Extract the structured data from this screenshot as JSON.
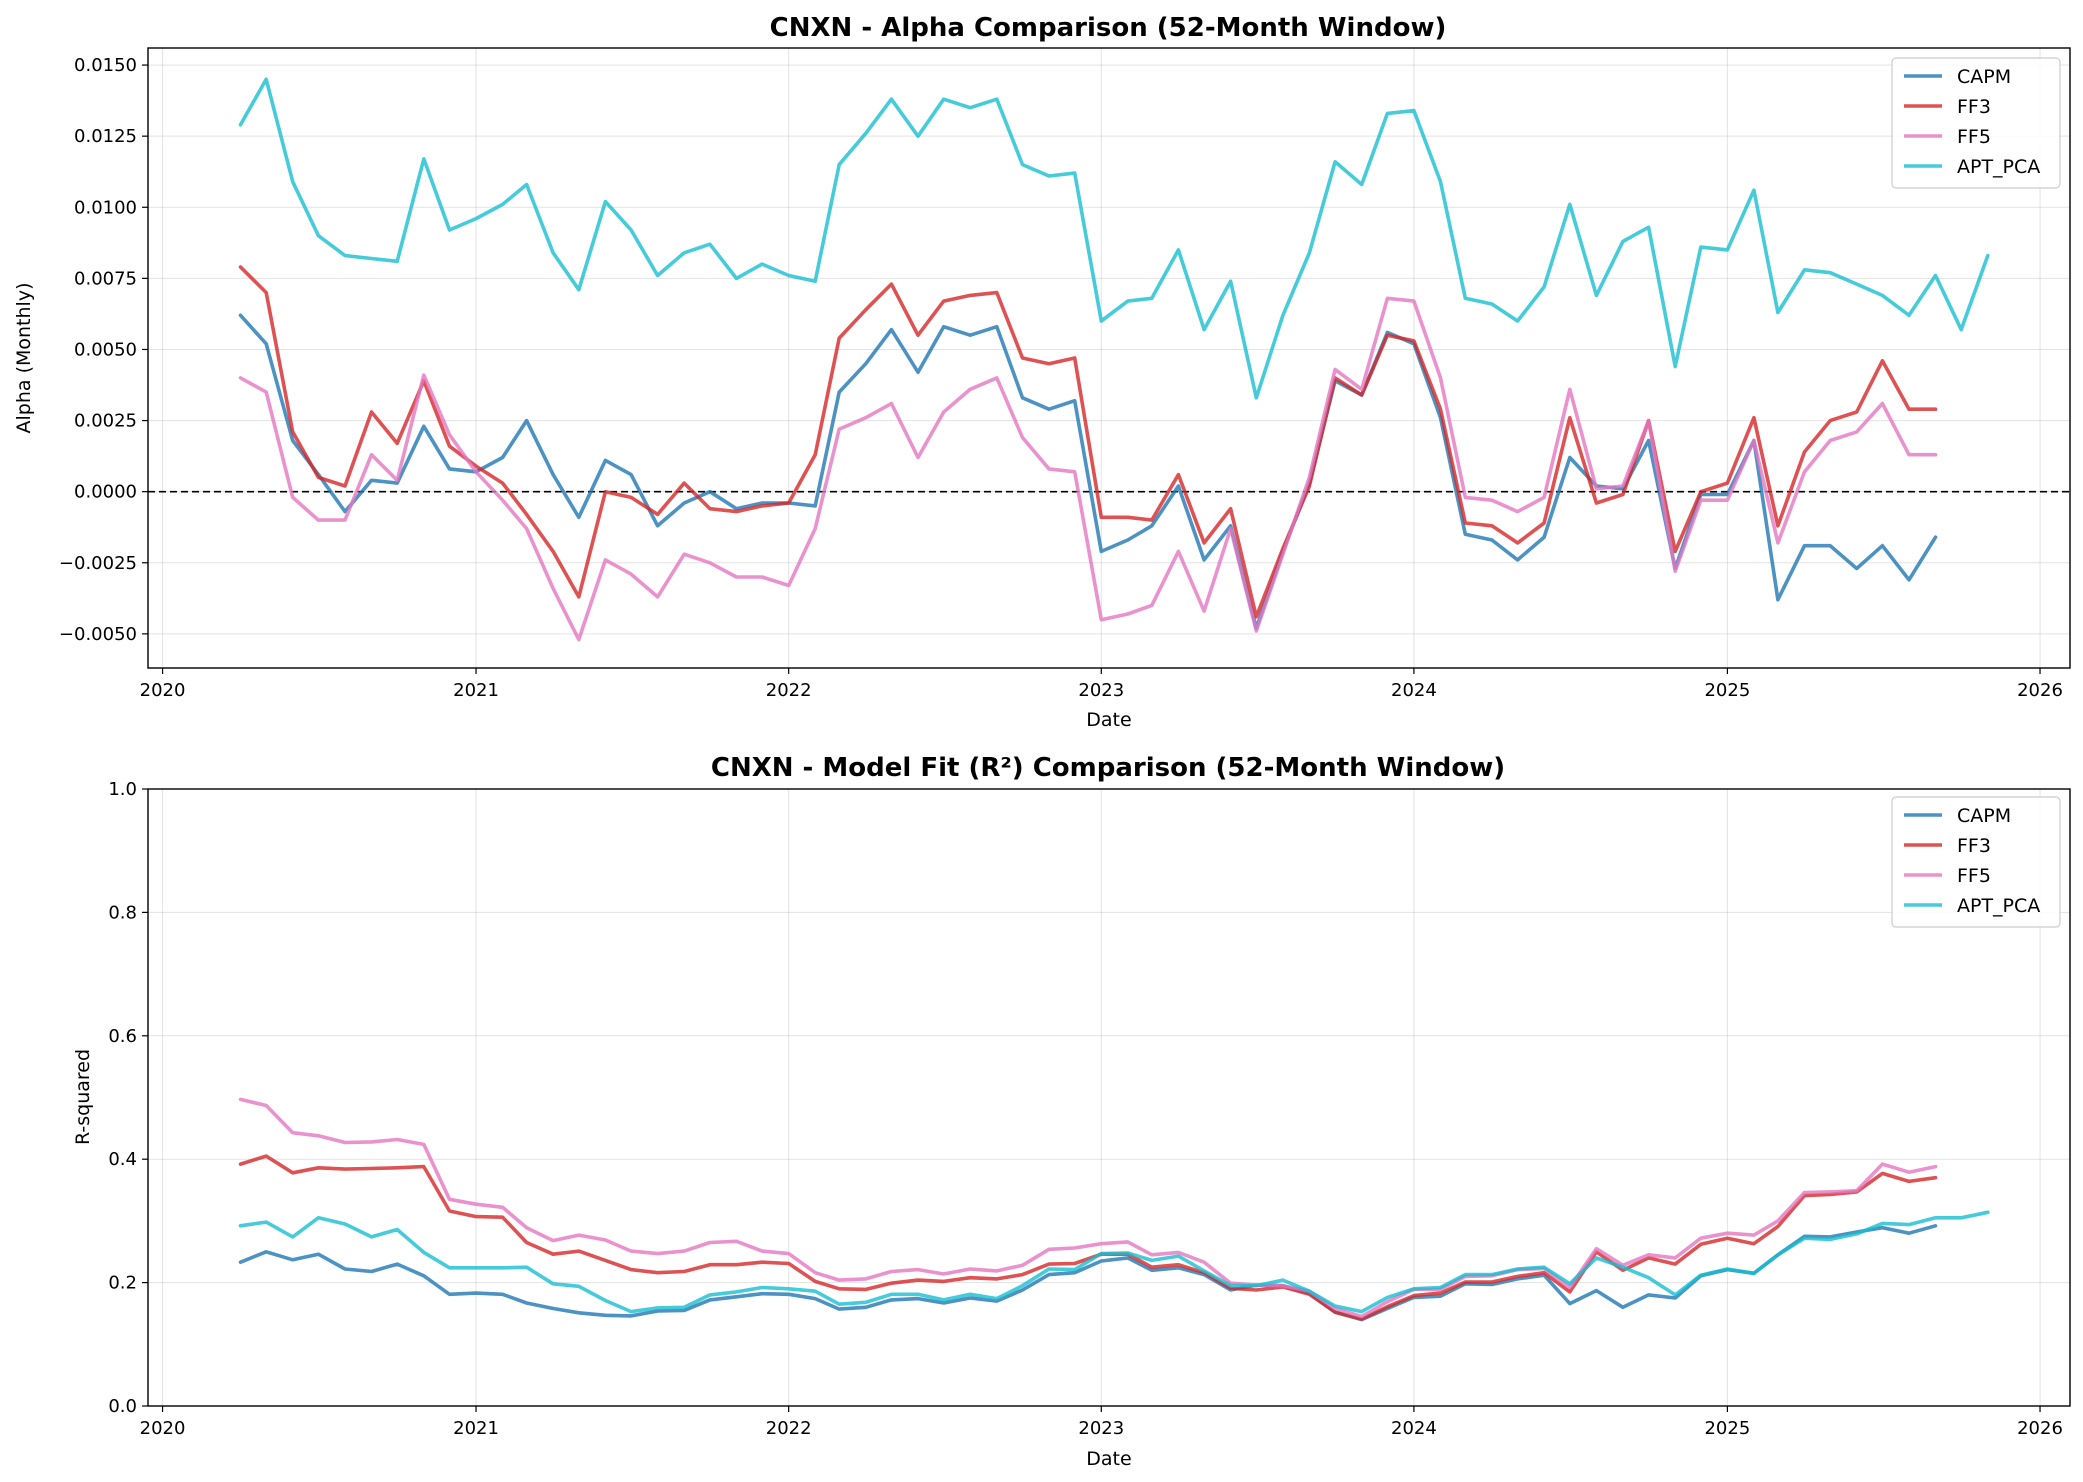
{
  "chart_data": [
    {
      "type": "line",
      "title": "CNXN - Alpha Comparison (52-Month Window)",
      "xlabel": "Date",
      "ylabel": "Alpha (Monthly)",
      "xlim": [
        "2019-12-15",
        "2026-02-05"
      ],
      "ylim": [
        -0.0062,
        0.0156
      ],
      "x_ticks": [
        "2020",
        "2021",
        "2022",
        "2023",
        "2024",
        "2025",
        "2026"
      ],
      "y_ticks": [
        "0.0150",
        "0.0125",
        "0.0100",
        "0.0075",
        "0.0050",
        "0.0025",
        "0.0000",
        "−0.0025",
        "−0.0050"
      ],
      "y_tick_values": [
        0.015,
        0.0125,
        0.01,
        0.0075,
        0.005,
        0.0025,
        0.0,
        -0.0025,
        -0.005
      ],
      "zero_line": true,
      "grid": true,
      "legend": "top-right",
      "series": [
        {
          "name": "CAPM",
          "color": "#1f77b4",
          "start": "2020-04",
          "values": [
            0.0062,
            0.0052,
            0.0018,
            0.0006,
            -0.0007,
            0.0004,
            0.0003,
            0.0023,
            0.0008,
            0.0007,
            0.0012,
            0.0025,
            0.0006,
            -0.0009,
            0.0011,
            0.0006,
            -0.0012,
            -0.0004,
            0.0,
            -0.0006,
            -0.0004,
            -0.0004,
            -0.0005,
            0.0035,
            0.0045,
            0.0057,
            0.0042,
            0.0058,
            0.0055,
            0.0058,
            0.0033,
            0.0029,
            0.0032,
            -0.0021,
            -0.0017,
            -0.0012,
            0.0002,
            -0.0024,
            -0.0012,
            -0.0048,
            -0.0021,
            0.0003,
            0.0039,
            0.0034,
            0.0056,
            0.0052,
            0.0026,
            -0.0015,
            -0.0017,
            -0.0024,
            -0.0016,
            0.0012,
            0.0002,
            0.0001,
            0.0018,
            -0.0027,
            -0.0001,
            -0.0001,
            0.0018,
            -0.0038,
            -0.0019,
            -0.0019,
            -0.0027,
            -0.0019,
            -0.0031,
            -0.0016
          ]
        },
        {
          "name": "FF3",
          "color": "#d62728",
          "start": "2020-04",
          "values": [
            0.0079,
            0.007,
            0.0021,
            0.0005,
            0.0002,
            0.0028,
            0.0017,
            0.0039,
            0.0016,
            0.0009,
            0.0003,
            -0.0008,
            -0.0021,
            -0.0037,
            0.0,
            -0.0002,
            -0.0008,
            0.0003,
            -0.0006,
            -0.0007,
            -0.0005,
            -0.0004,
            0.0013,
            0.0054,
            0.0064,
            0.0073,
            0.0055,
            0.0067,
            0.0069,
            0.007,
            0.0047,
            0.0045,
            0.0047,
            -0.0009,
            -0.0009,
            -0.001,
            0.0006,
            -0.0018,
            -0.0006,
            -0.0044,
            -0.002,
            0.0002,
            0.004,
            0.0034,
            0.0055,
            0.0053,
            0.0029,
            -0.0011,
            -0.0012,
            -0.0018,
            -0.0011,
            0.0026,
            -0.0004,
            -0.0001,
            0.0025,
            -0.0021,
            0.0,
            0.0003,
            0.0026,
            -0.0012,
            0.0014,
            0.0025,
            0.0028,
            0.0046,
            0.0029,
            0.0029
          ]
        },
        {
          "name": "FF5",
          "color": "#e377c2",
          "start": "2020-04",
          "values": [
            0.004,
            0.0035,
            -0.0002,
            -0.001,
            -0.001,
            0.0013,
            0.0004,
            0.0041,
            0.002,
            0.0007,
            -0.0003,
            -0.0013,
            -0.0034,
            -0.0052,
            -0.0024,
            -0.0029,
            -0.0037,
            -0.0022,
            -0.0025,
            -0.003,
            -0.003,
            -0.0033,
            -0.0013,
            0.0022,
            0.0026,
            0.0031,
            0.0012,
            0.0028,
            0.0036,
            0.004,
            0.0019,
            0.0008,
            0.0007,
            -0.0045,
            -0.0043,
            -0.004,
            -0.0021,
            -0.0042,
            -0.0013,
            -0.0049,
            -0.0022,
            0.0005,
            0.0043,
            0.0036,
            0.0068,
            0.0067,
            0.004,
            -0.0002,
            -0.0003,
            -0.0007,
            -0.0002,
            0.0036,
            0.0001,
            0.0002,
            0.0025,
            -0.0028,
            -0.0003,
            -0.0003,
            0.0018,
            -0.0018,
            0.0007,
            0.0018,
            0.0021,
            0.0031,
            0.0013,
            0.0013
          ]
        },
        {
          "name": "APT_PCA",
          "color": "#17becf",
          "start": "2020-04",
          "values": [
            0.0129,
            0.0145,
            0.0109,
            0.009,
            0.0083,
            0.0082,
            0.0081,
            0.0117,
            0.0092,
            0.0096,
            0.0101,
            0.0108,
            0.0084,
            0.0071,
            0.0102,
            0.0092,
            0.0076,
            0.0084,
            0.0087,
            0.0075,
            0.008,
            0.0076,
            0.0074,
            0.0115,
            0.0126,
            0.0138,
            0.0125,
            0.0138,
            0.0135,
            0.0138,
            0.0115,
            0.0111,
            0.0112,
            0.006,
            0.0067,
            0.0068,
            0.0085,
            0.0057,
            0.0074,
            0.0033,
            0.0062,
            0.0084,
            0.0116,
            0.0108,
            0.0133,
            0.0134,
            0.0109,
            0.0068,
            0.0066,
            0.006,
            0.0072,
            0.0101,
            0.0069,
            0.0088,
            0.0093,
            0.0044,
            0.0086,
            0.0085,
            0.0106,
            0.0063,
            0.0078,
            0.0077,
            0.0073,
            0.0069,
            0.0062,
            0.0076,
            0.0057,
            0.0083
          ]
        }
      ]
    },
    {
      "type": "line",
      "title": "CNXN - Model Fit (R²) Comparison (52-Month Window)",
      "xlabel": "Date",
      "ylabel": "R-squared",
      "xlim": [
        "2019-12-15",
        "2026-02-05"
      ],
      "ylim": [
        0,
        1
      ],
      "x_ticks": [
        "2020",
        "2021",
        "2022",
        "2023",
        "2024",
        "2025",
        "2026"
      ],
      "y_ticks": [
        "1.0",
        "0.8",
        "0.6",
        "0.4",
        "0.2",
        "0.0"
      ],
      "y_tick_values": [
        1.0,
        0.8,
        0.6,
        0.4,
        0.2,
        0.0
      ],
      "grid": true,
      "legend": "top-right",
      "series": [
        {
          "name": "CAPM",
          "color": "#1f77b4",
          "start": "2020-04",
          "values": [
            0.233,
            0.25,
            0.237,
            0.246,
            0.222,
            0.218,
            0.23,
            0.211,
            0.181,
            0.183,
            0.181,
            0.167,
            0.158,
            0.151,
            0.147,
            0.146,
            0.154,
            0.155,
            0.172,
            0.177,
            0.182,
            0.181,
            0.174,
            0.157,
            0.16,
            0.172,
            0.174,
            0.167,
            0.175,
            0.17,
            0.188,
            0.213,
            0.216,
            0.235,
            0.24,
            0.22,
            0.224,
            0.213,
            0.188,
            0.196,
            0.195,
            0.183,
            0.152,
            0.14,
            0.158,
            0.176,
            0.178,
            0.198,
            0.197,
            0.206,
            0.212,
            0.166,
            0.187,
            0.16,
            0.18,
            0.175,
            0.211,
            0.221,
            0.215,
            0.245,
            0.275,
            0.274,
            0.282,
            0.289,
            0.28,
            0.292
          ]
        },
        {
          "name": "FF3",
          "color": "#d62728",
          "start": "2020-04",
          "values": [
            0.392,
            0.405,
            0.378,
            0.386,
            0.384,
            0.385,
            0.386,
            0.388,
            0.316,
            0.307,
            0.306,
            0.265,
            0.246,
            0.251,
            0.236,
            0.221,
            0.216,
            0.218,
            0.229,
            0.229,
            0.233,
            0.231,
            0.202,
            0.19,
            0.189,
            0.199,
            0.204,
            0.202,
            0.208,
            0.206,
            0.213,
            0.23,
            0.231,
            0.246,
            0.246,
            0.225,
            0.229,
            0.216,
            0.191,
            0.188,
            0.193,
            0.181,
            0.152,
            0.141,
            0.161,
            0.179,
            0.183,
            0.201,
            0.201,
            0.21,
            0.216,
            0.185,
            0.25,
            0.22,
            0.24,
            0.23,
            0.262,
            0.272,
            0.263,
            0.291,
            0.341,
            0.343,
            0.347,
            0.377,
            0.364,
            0.37
          ]
        },
        {
          "name": "FF5",
          "color": "#e377c2",
          "start": "2020-04",
          "values": [
            0.497,
            0.487,
            0.443,
            0.438,
            0.427,
            0.428,
            0.432,
            0.424,
            0.335,
            0.327,
            0.322,
            0.289,
            0.268,
            0.277,
            0.269,
            0.251,
            0.247,
            0.251,
            0.265,
            0.267,
            0.251,
            0.247,
            0.216,
            0.204,
            0.206,
            0.218,
            0.221,
            0.214,
            0.222,
            0.219,
            0.228,
            0.254,
            0.256,
            0.263,
            0.266,
            0.245,
            0.249,
            0.233,
            0.199,
            0.196,
            0.195,
            0.186,
            0.158,
            0.145,
            0.169,
            0.189,
            0.189,
            0.21,
            0.211,
            0.221,
            0.223,
            0.192,
            0.255,
            0.228,
            0.245,
            0.24,
            0.272,
            0.28,
            0.277,
            0.3,
            0.346,
            0.347,
            0.349,
            0.392,
            0.379,
            0.388
          ]
        },
        {
          "name": "APT_PCA",
          "color": "#17becf",
          "start": "2020-04",
          "values": [
            0.292,
            0.298,
            0.274,
            0.305,
            0.295,
            0.274,
            0.286,
            0.249,
            0.224,
            0.224,
            0.224,
            0.225,
            0.198,
            0.194,
            0.171,
            0.153,
            0.159,
            0.16,
            0.18,
            0.185,
            0.192,
            0.19,
            0.186,
            0.165,
            0.168,
            0.181,
            0.181,
            0.172,
            0.181,
            0.174,
            0.195,
            0.222,
            0.221,
            0.247,
            0.248,
            0.236,
            0.243,
            0.219,
            0.195,
            0.195,
            0.204,
            0.186,
            0.162,
            0.153,
            0.176,
            0.19,
            0.192,
            0.213,
            0.213,
            0.222,
            0.225,
            0.198,
            0.24,
            0.225,
            0.208,
            0.18,
            0.212,
            0.222,
            0.215,
            0.245,
            0.272,
            0.27,
            0.279,
            0.296,
            0.294,
            0.305,
            0.305,
            0.314
          ]
        }
      ]
    }
  ]
}
